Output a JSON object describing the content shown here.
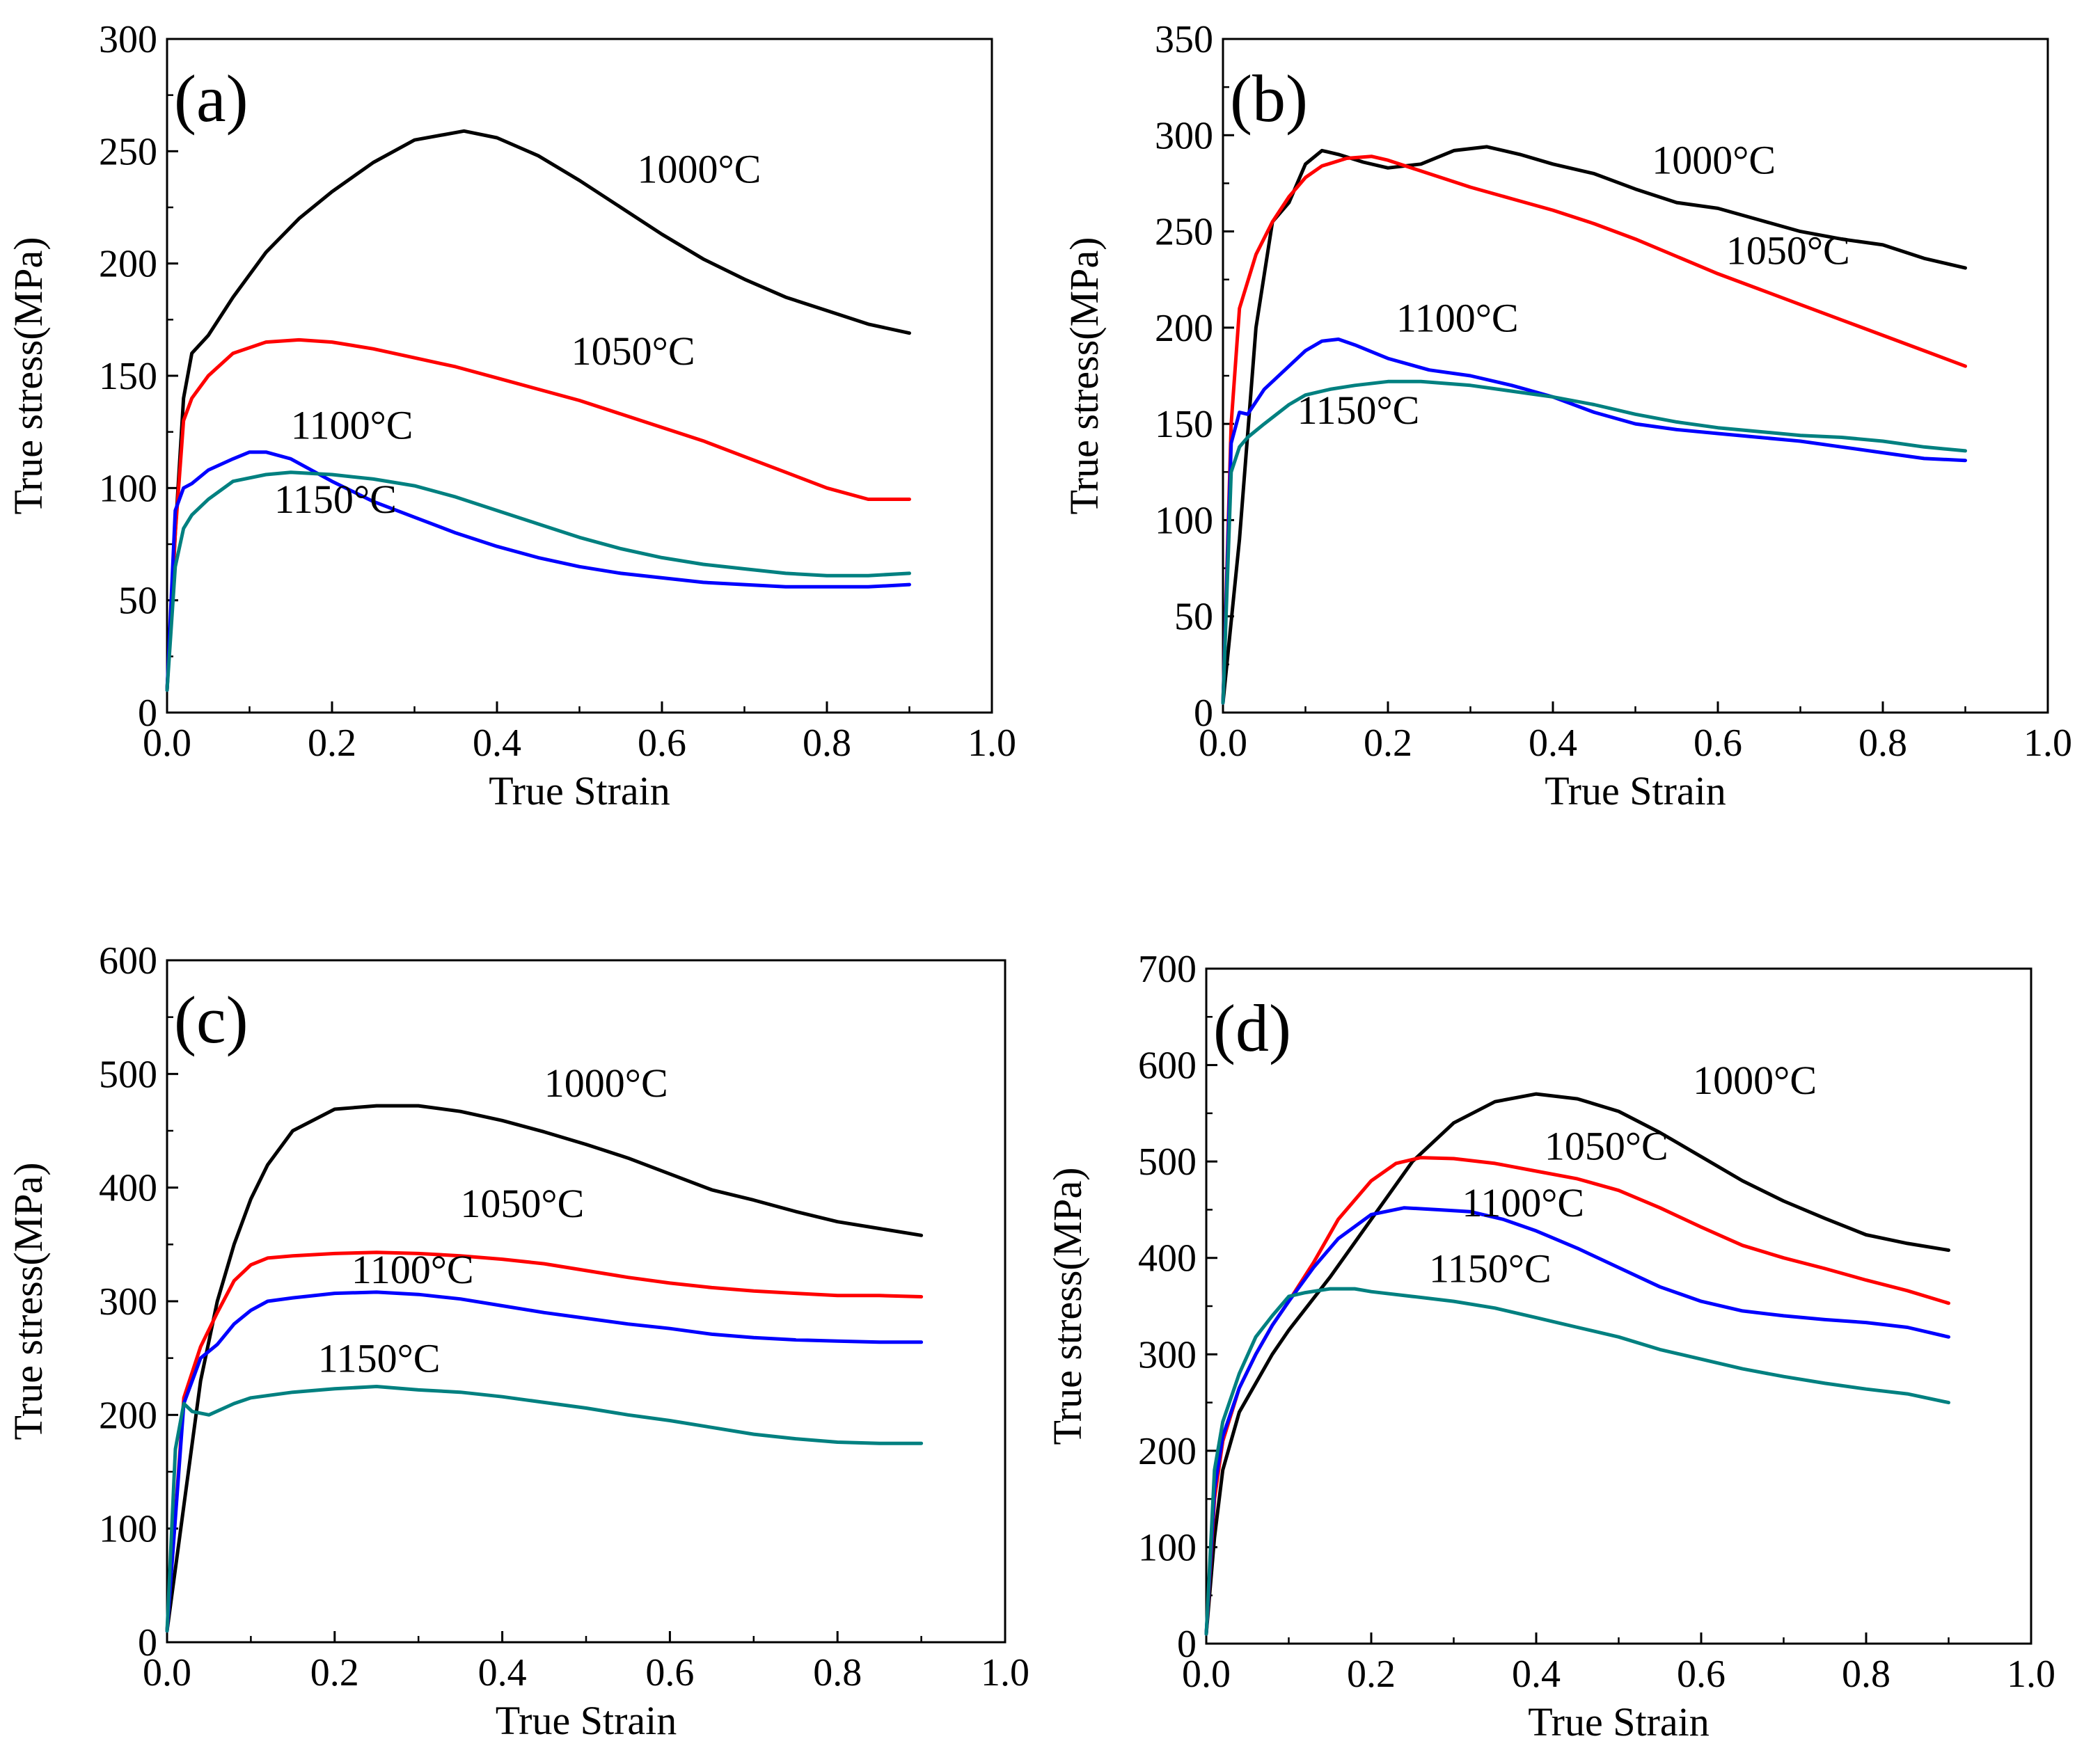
{
  "figure": {
    "colors": {
      "1000": "#000000",
      "1050": "#ff0000",
      "1100": "#0000ff",
      "1150": "#008080"
    }
  },
  "chart_data": [
    {
      "type": "line",
      "panel_label": "(a)",
      "xlabel": "True Strain",
      "ylabel": "True stress(MPa)",
      "xlim": [
        0,
        1.0
      ],
      "ylim": [
        0,
        300
      ],
      "xticks": [
        "0.0",
        "0.2",
        "0.4",
        "0.6",
        "0.8",
        "1.0"
      ],
      "yticks": [
        "0",
        "50",
        "100",
        "150",
        "200",
        "250",
        "300"
      ],
      "series": [
        {
          "name": "1000°C",
          "label": "1000°C",
          "color_key": "1000",
          "label_pos": [
            0.57,
            236
          ],
          "x": [
            0,
            0.01,
            0.02,
            0.03,
            0.05,
            0.08,
            0.12,
            0.16,
            0.2,
            0.25,
            0.3,
            0.36,
            0.4,
            0.45,
            0.5,
            0.55,
            0.6,
            0.65,
            0.7,
            0.75,
            0.8,
            0.85,
            0.9
          ],
          "y": [
            10,
            80,
            140,
            160,
            168,
            185,
            205,
            220,
            232,
            245,
            255,
            259,
            256,
            248,
            237,
            225,
            213,
            202,
            193,
            185,
            179,
            173,
            169
          ]
        },
        {
          "name": "1050°C",
          "label": "1050°C",
          "color_key": "1050",
          "label_pos": [
            0.49,
            155
          ],
          "x": [
            0,
            0.01,
            0.02,
            0.03,
            0.05,
            0.08,
            0.12,
            0.16,
            0.2,
            0.25,
            0.3,
            0.35,
            0.4,
            0.45,
            0.5,
            0.55,
            0.6,
            0.65,
            0.7,
            0.75,
            0.8,
            0.85,
            0.9
          ],
          "y": [
            10,
            80,
            130,
            140,
            150,
            160,
            165,
            166,
            165,
            162,
            158,
            154,
            149,
            144,
            139,
            133,
            127,
            121,
            114,
            107,
            100,
            95,
            95
          ]
        },
        {
          "name": "1100°C",
          "label": "1100°C",
          "color_key": "1100",
          "label_pos": [
            0.15,
            122
          ],
          "x": [
            0,
            0.01,
            0.02,
            0.03,
            0.05,
            0.08,
            0.1,
            0.12,
            0.15,
            0.2,
            0.25,
            0.3,
            0.35,
            0.4,
            0.45,
            0.5,
            0.55,
            0.6,
            0.65,
            0.7,
            0.75,
            0.8,
            0.85,
            0.9
          ],
          "y": [
            10,
            90,
            100,
            102,
            108,
            113,
            116,
            116,
            113,
            103,
            94,
            87,
            80,
            74,
            69,
            65,
            62,
            60,
            58,
            57,
            56,
            56,
            56,
            57
          ]
        },
        {
          "name": "1150°C",
          "label": "1150°C",
          "color_key": "1150",
          "label_pos": [
            0.13,
            89
          ],
          "x": [
            0,
            0.01,
            0.02,
            0.03,
            0.05,
            0.08,
            0.12,
            0.15,
            0.2,
            0.25,
            0.3,
            0.35,
            0.4,
            0.45,
            0.5,
            0.55,
            0.6,
            0.65,
            0.7,
            0.75,
            0.8,
            0.85,
            0.9
          ],
          "y": [
            10,
            65,
            82,
            88,
            95,
            103,
            106,
            107,
            106,
            104,
            101,
            96,
            90,
            84,
            78,
            73,
            69,
            66,
            64,
            62,
            61,
            61,
            62
          ]
        }
      ]
    },
    {
      "type": "line",
      "panel_label": "(b)",
      "xlabel": "True Strain",
      "ylabel": "True stress(MPa)",
      "xlim": [
        0,
        1.0
      ],
      "ylim": [
        0,
        350
      ],
      "xticks": [
        "0.0",
        "0.2",
        "0.4",
        "0.6",
        "0.8",
        "1.0"
      ],
      "yticks": [
        "0",
        "50",
        "100",
        "150",
        "200",
        "250",
        "300",
        "350"
      ],
      "series": [
        {
          "name": "1000°C",
          "label": "1000°C",
          "color_key": "1000",
          "label_pos": [
            0.52,
            280
          ],
          "x": [
            0,
            0.02,
            0.04,
            0.06,
            0.08,
            0.1,
            0.12,
            0.14,
            0.17,
            0.2,
            0.24,
            0.28,
            0.32,
            0.36,
            0.4,
            0.45,
            0.5,
            0.55,
            0.6,
            0.65,
            0.7,
            0.75,
            0.8,
            0.85,
            0.9
          ],
          "y": [
            5,
            90,
            200,
            255,
            265,
            285,
            292,
            290,
            286,
            283,
            285,
            292,
            294,
            290,
            285,
            280,
            272,
            265,
            262,
            256,
            250,
            246,
            243,
            236,
            231
          ]
        },
        {
          "name": "1050°C",
          "label": "1050°C",
          "color_key": "1050",
          "label_pos": [
            0.61,
            233
          ],
          "x": [
            0,
            0.01,
            0.02,
            0.04,
            0.06,
            0.08,
            0.1,
            0.12,
            0.15,
            0.18,
            0.2,
            0.25,
            0.3,
            0.35,
            0.4,
            0.45,
            0.5,
            0.55,
            0.6,
            0.65,
            0.7,
            0.75,
            0.8,
            0.85,
            0.9
          ],
          "y": [
            5,
            150,
            210,
            238,
            255,
            268,
            278,
            284,
            288,
            289,
            287,
            280,
            273,
            267,
            261,
            254,
            246,
            237,
            228,
            220,
            212,
            204,
            196,
            188,
            180
          ]
        },
        {
          "name": "1100°C",
          "label": "1100°C",
          "color_key": "1100",
          "label_pos": [
            0.21,
            198
          ],
          "x": [
            0,
            0.01,
            0.02,
            0.03,
            0.05,
            0.08,
            0.1,
            0.12,
            0.14,
            0.16,
            0.2,
            0.25,
            0.3,
            0.35,
            0.4,
            0.45,
            0.5,
            0.55,
            0.6,
            0.65,
            0.7,
            0.75,
            0.8,
            0.85,
            0.9
          ],
          "y": [
            5,
            140,
            156,
            155,
            168,
            180,
            188,
            193,
            194,
            191,
            184,
            178,
            175,
            170,
            164,
            156,
            150,
            147,
            145,
            143,
            141,
            138,
            135,
            132,
            131
          ]
        },
        {
          "name": "1150°C",
          "label": "1150°C",
          "color_key": "1150",
          "label_pos": [
            0.09,
            150
          ],
          "x": [
            0,
            0.01,
            0.02,
            0.03,
            0.05,
            0.08,
            0.1,
            0.13,
            0.16,
            0.2,
            0.24,
            0.3,
            0.35,
            0.4,
            0.45,
            0.5,
            0.55,
            0.6,
            0.65,
            0.7,
            0.75,
            0.8,
            0.85,
            0.9
          ],
          "y": [
            5,
            125,
            138,
            143,
            150,
            160,
            165,
            168,
            170,
            172,
            172,
            170,
            167,
            164,
            160,
            155,
            151,
            148,
            146,
            144,
            143,
            141,
            138,
            136
          ]
        }
      ]
    },
    {
      "type": "line",
      "panel_label": "(c)",
      "xlabel": "True Strain",
      "ylabel": "True stress(MPa)",
      "xlim": [
        0,
        1.0
      ],
      "ylim": [
        0,
        600
      ],
      "xticks": [
        "0.0",
        "0.2",
        "0.4",
        "0.6",
        "0.8",
        "1.0"
      ],
      "yticks": [
        "0",
        "100",
        "200",
        "300",
        "400",
        "500",
        "600"
      ],
      "series": [
        {
          "name": "1000°C",
          "label": "1000°C",
          "color_key": "1000",
          "label_pos": [
            0.45,
            480
          ],
          "x": [
            0,
            0.02,
            0.04,
            0.06,
            0.08,
            0.1,
            0.12,
            0.15,
            0.2,
            0.25,
            0.3,
            0.35,
            0.4,
            0.45,
            0.5,
            0.55,
            0.6,
            0.65,
            0.7,
            0.75,
            0.8,
            0.85,
            0.9
          ],
          "y": [
            10,
            120,
            230,
            300,
            350,
            390,
            420,
            450,
            469,
            472,
            472,
            467,
            459,
            449,
            438,
            426,
            412,
            398,
            389,
            379,
            370,
            364,
            358
          ]
        },
        {
          "name": "1050°C",
          "label": "1050°C",
          "color_key": "1050",
          "label_pos": [
            0.35,
            374
          ],
          "x": [
            0,
            0.02,
            0.04,
            0.06,
            0.08,
            0.1,
            0.12,
            0.15,
            0.2,
            0.25,
            0.3,
            0.35,
            0.4,
            0.45,
            0.5,
            0.55,
            0.6,
            0.65,
            0.7,
            0.75,
            0.8,
            0.85,
            0.9
          ],
          "y": [
            10,
            215,
            260,
            290,
            318,
            332,
            338,
            340,
            342,
            343,
            342,
            340,
            337,
            333,
            327,
            321,
            316,
            312,
            309,
            307,
            305,
            305,
            304
          ]
        },
        {
          "name": "1100°C",
          "label": "1100°C",
          "color_key": "1100",
          "label_pos": [
            0.22,
            316
          ],
          "x": [
            0,
            0.02,
            0.04,
            0.06,
            0.08,
            0.1,
            0.12,
            0.15,
            0.2,
            0.25,
            0.3,
            0.35,
            0.4,
            0.45,
            0.5,
            0.55,
            0.6,
            0.65,
            0.7,
            0.75,
            0.8,
            0.85,
            0.9
          ],
          "y": [
            10,
            210,
            250,
            262,
            280,
            292,
            300,
            303,
            307,
            308,
            306,
            302,
            296,
            290,
            285,
            280,
            276,
            271,
            268,
            266,
            265,
            264,
            264
          ]
        },
        {
          "name": "1150°C",
          "label": "1150°C",
          "color_key": "1150",
          "label_pos": [
            0.18,
            238
          ],
          "x": [
            0,
            0.01,
            0.02,
            0.03,
            0.05,
            0.08,
            0.1,
            0.15,
            0.2,
            0.25,
            0.3,
            0.35,
            0.4,
            0.45,
            0.5,
            0.55,
            0.6,
            0.65,
            0.7,
            0.75,
            0.8,
            0.85,
            0.9
          ],
          "y": [
            10,
            170,
            210,
            203,
            200,
            210,
            215,
            220,
            223,
            225,
            222,
            220,
            216,
            211,
            206,
            200,
            195,
            189,
            183,
            179,
            176,
            175,
            175
          ]
        }
      ]
    },
    {
      "type": "line",
      "panel_label": "(d)",
      "xlabel": "True Strain",
      "ylabel": "True stress(MPa)",
      "xlim": [
        0,
        1.0
      ],
      "ylim": [
        0,
        700
      ],
      "xticks": [
        "0.0",
        "0.2",
        "0.4",
        "0.6",
        "0.8",
        "1.0"
      ],
      "yticks": [
        "0",
        "100",
        "200",
        "300",
        "400",
        "500",
        "600",
        "700"
      ],
      "series": [
        {
          "name": "1000°C",
          "label": "1000°C",
          "color_key": "1000",
          "label_pos": [
            0.59,
            570
          ],
          "x": [
            0,
            0.01,
            0.02,
            0.04,
            0.06,
            0.08,
            0.1,
            0.15,
            0.2,
            0.25,
            0.3,
            0.35,
            0.4,
            0.45,
            0.5,
            0.55,
            0.6,
            0.65,
            0.7,
            0.75,
            0.8,
            0.85,
            0.9
          ],
          "y": [
            10,
            110,
            180,
            240,
            270,
            300,
            325,
            380,
            440,
            500,
            540,
            562,
            570,
            565,
            552,
            530,
            505,
            480,
            459,
            441,
            424,
            415,
            408
          ]
        },
        {
          "name": "1050°C",
          "label": "1050°C",
          "color_key": "1050",
          "label_pos": [
            0.41,
            502
          ],
          "x": [
            0,
            0.01,
            0.02,
            0.04,
            0.06,
            0.08,
            0.1,
            0.13,
            0.16,
            0.2,
            0.23,
            0.26,
            0.3,
            0.35,
            0.4,
            0.45,
            0.5,
            0.55,
            0.6,
            0.65,
            0.7,
            0.75,
            0.8,
            0.85,
            0.9
          ],
          "y": [
            10,
            150,
            210,
            265,
            300,
            330,
            355,
            395,
            440,
            480,
            498,
            504,
            503,
            498,
            490,
            482,
            470,
            452,
            432,
            413,
            400,
            389,
            377,
            366,
            353
          ]
        },
        {
          "name": "1100°C",
          "label": "1100°C",
          "color_key": "1100",
          "label_pos": [
            0.31,
            443
          ],
          "x": [
            0,
            0.01,
            0.02,
            0.04,
            0.06,
            0.08,
            0.1,
            0.13,
            0.16,
            0.2,
            0.24,
            0.28,
            0.32,
            0.36,
            0.4,
            0.45,
            0.5,
            0.55,
            0.6,
            0.65,
            0.7,
            0.75,
            0.8,
            0.85,
            0.9
          ],
          "y": [
            10,
            160,
            215,
            265,
            300,
            330,
            355,
            390,
            420,
            445,
            452,
            450,
            448,
            440,
            428,
            410,
            390,
            370,
            355,
            345,
            340,
            336,
            333,
            328,
            318
          ]
        },
        {
          "name": "1150°C",
          "label": "1150°C",
          "color_key": "1150",
          "label_pos": [
            0.27,
            375
          ],
          "x": [
            0,
            0.01,
            0.02,
            0.04,
            0.06,
            0.08,
            0.1,
            0.12,
            0.15,
            0.18,
            0.2,
            0.25,
            0.3,
            0.35,
            0.4,
            0.45,
            0.5,
            0.55,
            0.6,
            0.65,
            0.7,
            0.75,
            0.8,
            0.85,
            0.9
          ],
          "y": [
            10,
            180,
            230,
            280,
            318,
            340,
            360,
            364,
            368,
            368,
            365,
            360,
            355,
            348,
            338,
            328,
            318,
            305,
            295,
            285,
            277,
            270,
            264,
            259,
            250
          ]
        }
      ]
    }
  ]
}
